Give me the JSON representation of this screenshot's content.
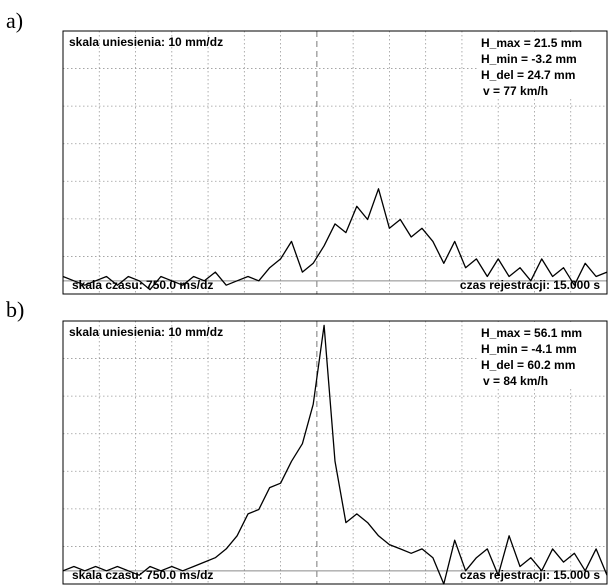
{
  "chart_data": [
    {
      "panel": "a)",
      "type": "line",
      "scale_text": "skala uniesienia:  10 mm/dz",
      "time_scale_text": "skala czasu:  750.0 ms/dz",
      "recording_text": "czas rejestracji: 15.000 s",
      "stats": [
        "H_max =   21.5 mm",
        "H_min =   -3.2 mm",
        "H_del =  24.7 mm",
        "v = 77 km/h"
      ],
      "xlabel": "",
      "ylabel": "",
      "xlim": [
        0,
        15
      ],
      "ylim": [
        -3,
        57
      ],
      "grid": true,
      "series": [
        {
          "x": [
            0,
            0.3,
            0.6,
            0.9,
            1.2,
            1.5,
            1.8,
            2.1,
            2.4,
            2.7,
            3.0,
            3.3,
            3.6,
            3.9,
            4.2,
            4.5,
            4.8,
            5.1,
            5.4,
            5.7,
            6.0,
            6.3,
            6.6,
            6.9,
            7.2,
            7.5,
            7.8,
            8.1,
            8.4,
            8.7,
            9.0,
            9.3,
            9.6,
            9.9,
            10.2,
            10.5,
            10.8,
            11.1,
            11.4,
            11.7,
            12.0,
            12.3,
            12.6,
            12.9,
            13.2,
            13.5,
            13.8,
            14.1,
            14.4,
            14.7,
            15.0
          ],
          "y": [
            1,
            0,
            -1,
            0,
            1,
            -1,
            1,
            0,
            -2,
            1,
            0,
            -1,
            1,
            0,
            2,
            -1,
            0,
            1,
            0,
            3,
            5,
            9,
            2,
            4,
            8,
            13,
            11,
            17,
            14,
            21,
            12,
            14,
            10,
            12,
            9,
            4,
            9,
            3,
            5,
            1,
            5,
            1,
            3,
            0,
            5,
            1,
            3,
            -1,
            4,
            1,
            2
          ]
        }
      ]
    },
    {
      "panel": "b)",
      "type": "line",
      "scale_text": "skala uniesienia:  10 mm/dz",
      "time_scale_text": "skala czasu:  750.0 ms/dz",
      "recording_text": "czas rejestracji: 15.000 s",
      "stats": [
        "H_max =  56.1 mm",
        "H_min =   -4.1 mm",
        "H_del =  60.2 mm",
        "v = 84 km/h"
      ],
      "xlabel": "",
      "ylabel": "",
      "xlim": [
        0,
        15
      ],
      "ylim": [
        -3,
        57
      ],
      "grid": true,
      "series": [
        {
          "x": [
            0,
            0.3,
            0.6,
            0.9,
            1.2,
            1.5,
            1.8,
            2.1,
            2.4,
            2.7,
            3.0,
            3.3,
            3.6,
            3.9,
            4.2,
            4.5,
            4.8,
            5.1,
            5.4,
            5.7,
            6.0,
            6.3,
            6.6,
            6.9,
            7.2,
            7.5,
            7.8,
            8.1,
            8.4,
            8.7,
            9.0,
            9.3,
            9.6,
            9.9,
            10.2,
            10.5,
            10.8,
            11.1,
            11.4,
            11.7,
            12.0,
            12.3,
            12.6,
            12.9,
            13.2,
            13.5,
            13.8,
            14.1,
            14.4,
            14.7,
            15.0
          ],
          "y": [
            0,
            1,
            0,
            1,
            0,
            1,
            0,
            -1,
            1,
            0,
            1,
            0,
            1,
            2,
            3,
            5,
            8,
            13,
            14,
            19,
            20,
            25,
            29,
            38,
            56,
            25,
            11,
            13,
            11,
            8,
            6,
            5,
            4,
            5,
            3,
            -3,
            7,
            0,
            3,
            5,
            -1,
            8,
            1,
            3,
            0,
            5,
            2,
            4,
            0,
            5,
            -1
          ]
        }
      ]
    }
  ]
}
